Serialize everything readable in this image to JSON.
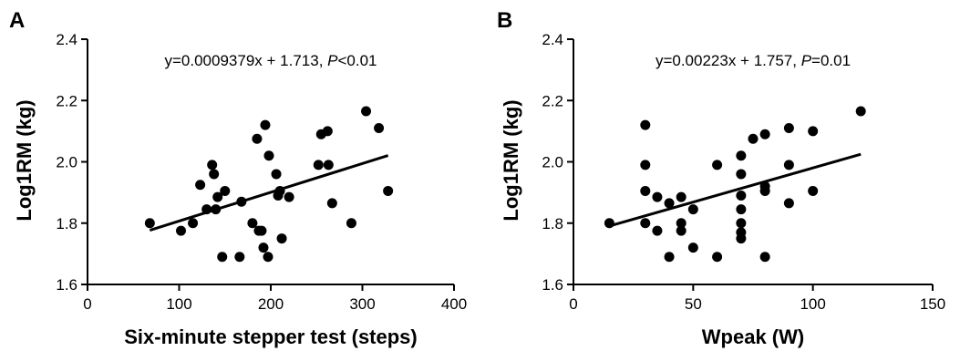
{
  "chart_data": [
    {
      "panel_label": "A",
      "type": "scatter",
      "xlabel": "Six-minute stepper test (steps)",
      "ylabel": "Log1RM (kg)",
      "xlim": [
        0,
        400
      ],
      "ylim": [
        1.6,
        2.4
      ],
      "xticks": [
        0,
        100,
        200,
        300,
        400
      ],
      "yticks": [
        1.6,
        1.8,
        2.0,
        2.2,
        2.4
      ],
      "xtick_labels": [
        "0",
        "100",
        "200",
        "300",
        "400"
      ],
      "ytick_labels": [
        "1.6",
        "1.8",
        "2.0",
        "2.2",
        "2.4"
      ],
      "annotation": {
        "prefix": "y=0.0009379x + 1.713, ",
        "p_symbol": "P",
        "p_suffix": "<0.01"
      },
      "fit_line": {
        "slope": 0.0009379,
        "intercept": 1.713,
        "x_range": [
          68,
          328
        ]
      },
      "grid": false,
      "points": [
        {
          "x": 68,
          "y": 1.8
        },
        {
          "x": 102,
          "y": 1.775
        },
        {
          "x": 115,
          "y": 1.8
        },
        {
          "x": 123,
          "y": 1.925
        },
        {
          "x": 130,
          "y": 1.845
        },
        {
          "x": 136,
          "y": 1.99
        },
        {
          "x": 138,
          "y": 1.96
        },
        {
          "x": 140,
          "y": 1.845
        },
        {
          "x": 142,
          "y": 1.885
        },
        {
          "x": 147,
          "y": 1.69
        },
        {
          "x": 150,
          "y": 1.905
        },
        {
          "x": 166,
          "y": 1.69
        },
        {
          "x": 168,
          "y": 1.87
        },
        {
          "x": 180,
          "y": 1.8
        },
        {
          "x": 185,
          "y": 2.075
        },
        {
          "x": 187,
          "y": 1.775
        },
        {
          "x": 190,
          "y": 1.775
        },
        {
          "x": 192,
          "y": 1.72
        },
        {
          "x": 194,
          "y": 2.12
        },
        {
          "x": 197,
          "y": 1.69
        },
        {
          "x": 198,
          "y": 2.02
        },
        {
          "x": 206,
          "y": 1.96
        },
        {
          "x": 208,
          "y": 1.89
        },
        {
          "x": 210,
          "y": 1.905
        },
        {
          "x": 212,
          "y": 1.75
        },
        {
          "x": 220,
          "y": 1.885
        },
        {
          "x": 252,
          "y": 1.99
        },
        {
          "x": 255,
          "y": 2.09
        },
        {
          "x": 262,
          "y": 2.1
        },
        {
          "x": 263,
          "y": 1.99
        },
        {
          "x": 267,
          "y": 1.865
        },
        {
          "x": 288,
          "y": 1.8
        },
        {
          "x": 304,
          "y": 2.165
        },
        {
          "x": 318,
          "y": 2.11
        },
        {
          "x": 328,
          "y": 1.905
        }
      ]
    },
    {
      "panel_label": "B",
      "type": "scatter",
      "xlabel": "Wpeak (W)",
      "ylabel": "Log1RM (kg)",
      "xlim": [
        0,
        150
      ],
      "ylim": [
        1.6,
        2.4
      ],
      "xticks": [
        0,
        50,
        100,
        150
      ],
      "yticks": [
        1.6,
        1.8,
        2.0,
        2.2,
        2.4
      ],
      "xtick_labels": [
        "0",
        "50",
        "100",
        "150"
      ],
      "ytick_labels": [
        "1.6",
        "1.8",
        "2.0",
        "2.2",
        "2.4"
      ],
      "annotation": {
        "prefix": "y=0.00223x + 1.757, ",
        "p_symbol": "P",
        "p_suffix": "=0.01"
      },
      "fit_line": {
        "slope": 0.00223,
        "intercept": 1.757,
        "x_range": [
          15,
          120
        ]
      },
      "grid": false,
      "points": [
        {
          "x": 15,
          "y": 1.8
        },
        {
          "x": 30,
          "y": 2.12
        },
        {
          "x": 30,
          "y": 1.99
        },
        {
          "x": 30,
          "y": 1.905
        },
        {
          "x": 30,
          "y": 1.8
        },
        {
          "x": 35,
          "y": 1.885
        },
        {
          "x": 35,
          "y": 1.775
        },
        {
          "x": 40,
          "y": 1.865
        },
        {
          "x": 40,
          "y": 1.69
        },
        {
          "x": 45,
          "y": 1.885
        },
        {
          "x": 45,
          "y": 1.8
        },
        {
          "x": 45,
          "y": 1.775
        },
        {
          "x": 50,
          "y": 1.845
        },
        {
          "x": 50,
          "y": 1.72
        },
        {
          "x": 60,
          "y": 1.99
        },
        {
          "x": 60,
          "y": 1.69
        },
        {
          "x": 70,
          "y": 2.02
        },
        {
          "x": 70,
          "y": 1.96
        },
        {
          "x": 70,
          "y": 1.89
        },
        {
          "x": 70,
          "y": 1.845
        },
        {
          "x": 70,
          "y": 1.8
        },
        {
          "x": 70,
          "y": 1.77
        },
        {
          "x": 70,
          "y": 1.75
        },
        {
          "x": 75,
          "y": 2.075
        },
        {
          "x": 80,
          "y": 2.09
        },
        {
          "x": 80,
          "y": 1.92
        },
        {
          "x": 80,
          "y": 1.905
        },
        {
          "x": 80,
          "y": 1.69
        },
        {
          "x": 90,
          "y": 2.11
        },
        {
          "x": 90,
          "y": 1.99
        },
        {
          "x": 90,
          "y": 1.865
        },
        {
          "x": 100,
          "y": 2.1
        },
        {
          "x": 100,
          "y": 1.905
        },
        {
          "x": 120,
          "y": 2.165
        }
      ]
    }
  ]
}
